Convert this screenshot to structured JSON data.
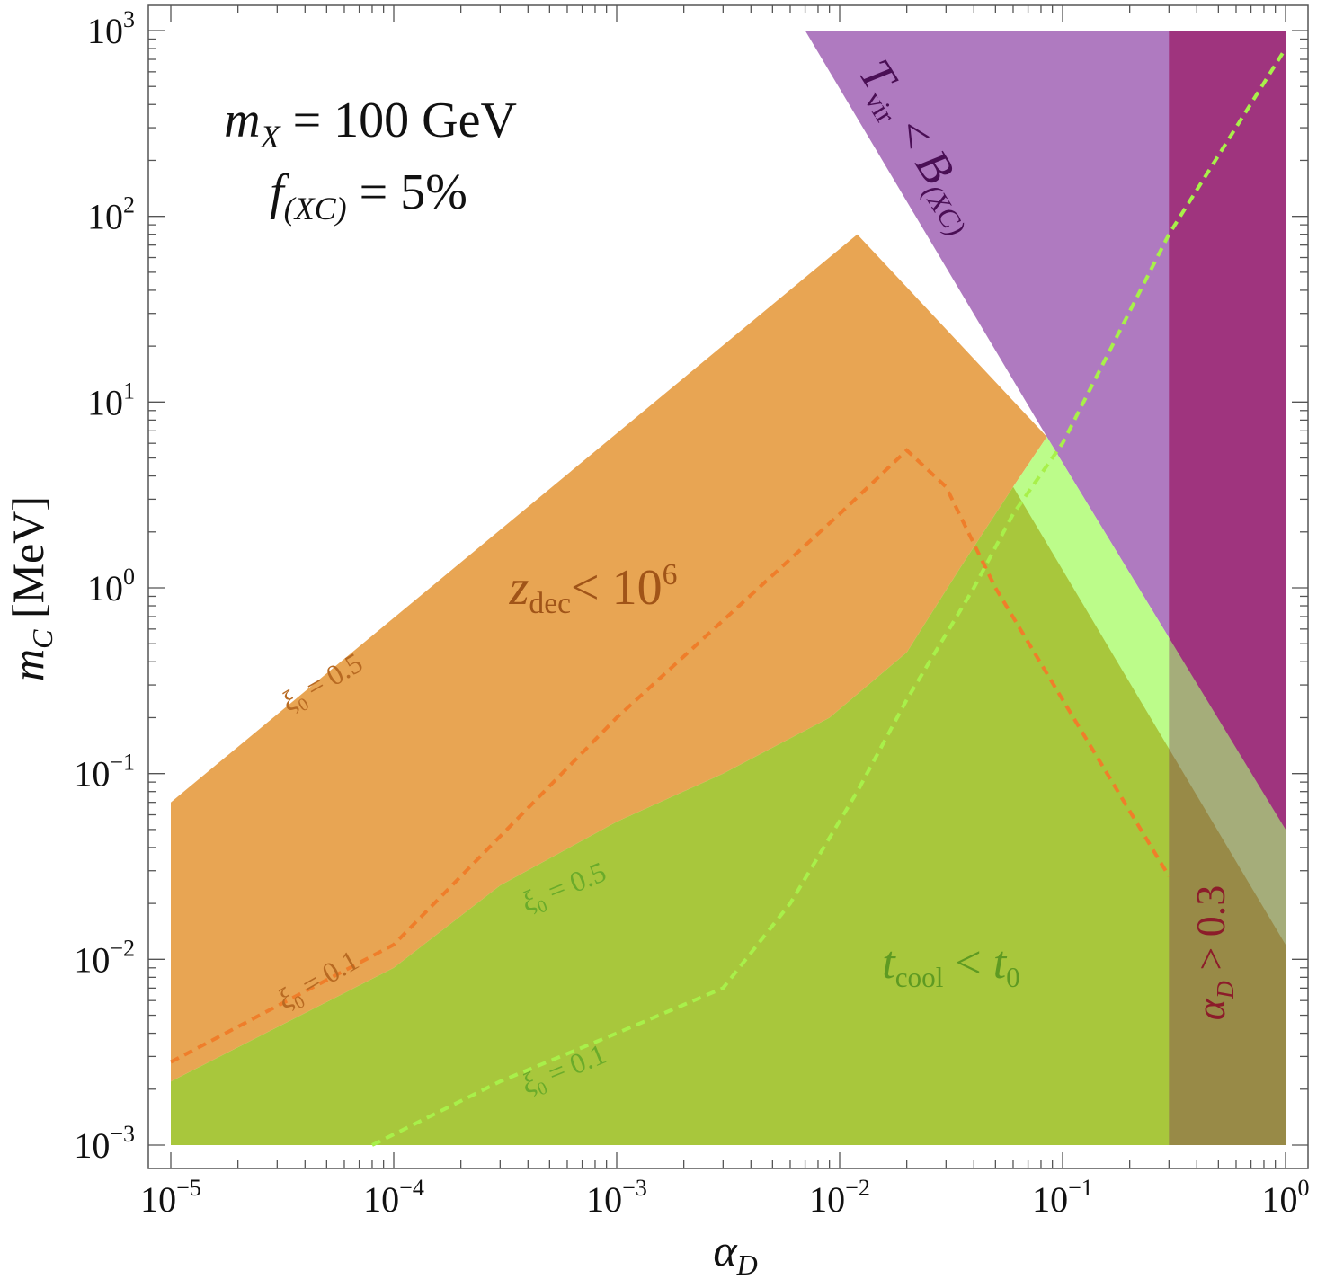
{
  "chart_data": {
    "type": "area",
    "x_scale": "log",
    "y_scale": "log",
    "xlim": [
      1e-05,
      1
    ],
    "ylim": [
      0.001,
      1000
    ],
    "grid": false,
    "xlabel": {
      "var": "α",
      "sub": "D"
    },
    "ylabel": {
      "var": "m",
      "sub": "C",
      "unit": " [MeV]"
    },
    "x_ticks": [
      {
        "value": 1e-05,
        "base": "10",
        "exp": "−5"
      },
      {
        "value": 0.0001,
        "base": "10",
        "exp": "−4"
      },
      {
        "value": 0.001,
        "base": "10",
        "exp": "−3"
      },
      {
        "value": 0.01,
        "base": "10",
        "exp": "−2"
      },
      {
        "value": 0.1,
        "base": "10",
        "exp": "−1"
      },
      {
        "value": 1,
        "base": "10",
        "exp": "0"
      }
    ],
    "y_ticks": [
      {
        "value": 0.001,
        "base": "10",
        "exp": "−3"
      },
      {
        "value": 0.01,
        "base": "10",
        "exp": "−2"
      },
      {
        "value": 0.1,
        "base": "10",
        "exp": "−1"
      },
      {
        "value": 1,
        "base": "10",
        "exp": "0"
      },
      {
        "value": 10,
        "base": "10",
        "exp": "1"
      },
      {
        "value": 100,
        "base": "10",
        "exp": "2"
      },
      {
        "value": 1000,
        "base": "10",
        "exp": "3"
      }
    ],
    "annotation": {
      "line1": {
        "var": "m",
        "sub": "X",
        "rest": " = 100 GeV"
      },
      "line2": {
        "var": "f",
        "sub": "(XC)",
        "rest": " = 5%"
      }
    },
    "regions": [
      {
        "id": "tvir",
        "color": "#9b59b0",
        "opacity": 0.8,
        "label": {
          "parts": [
            "T",
            "vir",
            " < ",
            "B",
            "(XC)"
          ]
        },
        "points": [
          [
            0.007,
            1000
          ],
          [
            1,
            1000
          ],
          [
            1,
            0.05
          ],
          [
            0.085,
            6.5
          ]
        ]
      },
      {
        "id": "alphaD",
        "color": "#b5156a",
        "opacity": 0.55,
        "label": {
          "parts": [
            "α",
            "D",
            " > 0.3"
          ]
        },
        "points": [
          [
            0.3,
            1000
          ],
          [
            1,
            1000
          ],
          [
            1,
            0.001
          ],
          [
            0.3,
            0.001
          ]
        ]
      },
      {
        "id": "zdec",
        "color": "#e8a553",
        "opacity": 1,
        "label": {
          "parts": [
            "z",
            "dec",
            "< 10",
            "6"
          ]
        },
        "points": [
          [
            1e-05,
            0.07
          ],
          [
            0.012,
            80
          ],
          [
            0.085,
            6.5
          ],
          [
            0.06,
            3.5
          ],
          [
            0.035,
            1.3
          ],
          [
            0.02,
            0.45
          ],
          [
            0.009,
            0.2
          ],
          [
            0.003,
            0.1
          ],
          [
            0.001,
            0.055
          ],
          [
            0.0003,
            0.025
          ],
          [
            0.0001,
            0.009
          ],
          [
            1e-05,
            0.0022
          ]
        ]
      },
      {
        "id": "tcool_light",
        "color": "#bcfc8a",
        "opacity": 1,
        "label": null,
        "points": [
          [
            0.085,
            6.5
          ],
          [
            1,
            0.05
          ],
          [
            1,
            0.001
          ],
          [
            0.06,
            0.001
          ],
          [
            0.06,
            3.5
          ]
        ]
      },
      {
        "id": "tcool",
        "color": "#a8c73c",
        "opacity": 1,
        "label": {
          "parts": [
            "t",
            "cool",
            " < ",
            "t",
            "0"
          ]
        },
        "points": [
          [
            1e-05,
            0.0022
          ],
          [
            0.0001,
            0.009
          ],
          [
            0.0003,
            0.025
          ],
          [
            0.001,
            0.055
          ],
          [
            0.003,
            0.1
          ],
          [
            0.009,
            0.2
          ],
          [
            0.02,
            0.45
          ],
          [
            0.035,
            1.3
          ],
          [
            0.06,
            3.5
          ],
          [
            1,
            0.012
          ],
          [
            1,
            0.001
          ],
          [
            1e-05,
            0.001
          ]
        ]
      },
      {
        "id": "alphaD_overlay",
        "color": "#7a1a5c",
        "opacity": 0.35,
        "label": null,
        "points": [
          [
            0.3,
            1000
          ],
          [
            1,
            1000
          ],
          [
            1,
            0.001
          ],
          [
            0.3,
            0.001
          ]
        ]
      }
    ],
    "series": [
      {
        "name": "ξ0 = 0.1",
        "color": "#ef7e2a",
        "dashed": true,
        "points": [
          [
            1e-05,
            0.0028
          ],
          [
            0.0001,
            0.012
          ],
          [
            0.001,
            0.2
          ],
          [
            0.01,
            2.5
          ],
          [
            0.02,
            5.5
          ],
          [
            0.03,
            3.5
          ],
          [
            0.05,
            1.0
          ],
          [
            0.1,
            0.25
          ],
          [
            0.3,
            0.028
          ]
        ]
      },
      {
        "name": "ξ0 = 0.1",
        "color": "#a8f04a",
        "dashed": true,
        "points": [
          [
            8e-05,
            0.001
          ],
          [
            0.0003,
            0.0022
          ],
          [
            0.001,
            0.004
          ],
          [
            0.003,
            0.007
          ],
          [
            0.006,
            0.02
          ],
          [
            0.012,
            0.08
          ],
          [
            0.02,
            0.25
          ],
          [
            0.04,
            1.0
          ],
          [
            0.06,
            2.5
          ],
          [
            0.1,
            6.0
          ],
          [
            0.3,
            80
          ],
          [
            1,
            800
          ]
        ]
      }
    ],
    "line_labels": [
      {
        "parts": [
          "ξ",
          "0",
          " = 0.5"
        ],
        "color": "#b86a22",
        "x": 5e-05,
        "y": 0.28,
        "angle": -30
      },
      {
        "parts": [
          "ξ",
          "0",
          " = 0.1"
        ],
        "color": "#b86a22",
        "x": 4.8e-05,
        "y": 0.007,
        "angle": -30
      },
      {
        "parts": [
          "ξ",
          "0",
          " = 0.5"
        ],
        "color": "#6aab2a",
        "x": 0.0006,
        "y": 0.022,
        "angle": -22
      },
      {
        "parts": [
          "ξ",
          "0",
          " = 0.1"
        ],
        "color": "#6aab2a",
        "x": 0.0006,
        "y": 0.0023,
        "angle": -22
      }
    ]
  }
}
